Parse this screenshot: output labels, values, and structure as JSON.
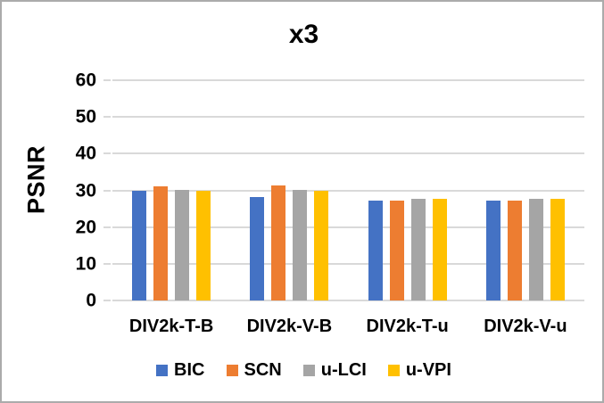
{
  "chart_data": {
    "type": "bar",
    "title": "x3",
    "xlabel": "",
    "ylabel": "PSNR",
    "ylim": [
      0,
      60
    ],
    "yticks": [
      0,
      10,
      20,
      30,
      40,
      50,
      60
    ],
    "grid": "horizontal",
    "legend_position": "bottom",
    "categories": [
      "DIV2k-T-B",
      "DIV2k-V-B",
      "DIV2k-T-u",
      "DIV2k-V-u"
    ],
    "series": [
      {
        "name": "BIC",
        "color": "#4472C4",
        "values": [
          29.8,
          28.3,
          27.3,
          27.3
        ]
      },
      {
        "name": "SCN",
        "color": "#ED7D31",
        "values": [
          31.0,
          31.3,
          27.3,
          27.3
        ]
      },
      {
        "name": "u-LCI",
        "color": "#A5A5A5",
        "values": [
          30.1,
          30.1,
          27.6,
          27.6
        ]
      },
      {
        "name": "u-VPI",
        "color": "#FFC000",
        "values": [
          30.0,
          30.0,
          27.6,
          27.6
        ]
      }
    ]
  },
  "colors": {
    "gridline": "#D9D9D9",
    "border": "#ABABAB",
    "text": "#000000"
  }
}
